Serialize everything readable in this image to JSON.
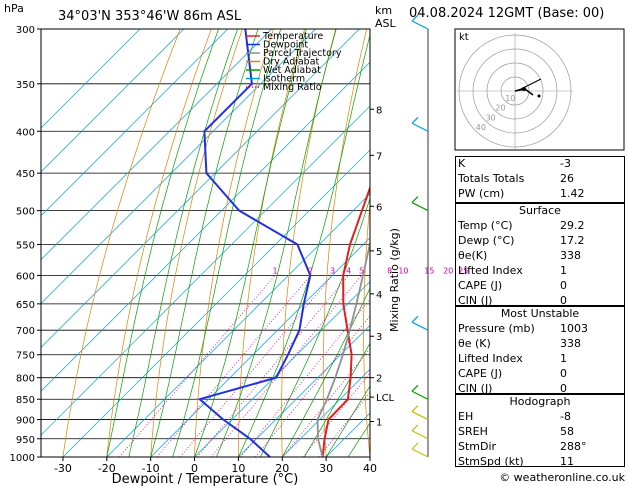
{
  "header": {
    "location": "34°03'N 353°46'W 86m ASL",
    "datetime": "04.08.2024 12GMT (Base: 00)",
    "hpa_unit": "hPa",
    "km_unit": "km",
    "asl_unit": "ASL"
  },
  "chart_data": {
    "type": "line",
    "title": "34°03'N 353°46'W 86m ASL",
    "xlabel": "Dewpoint / Temperature (°C)",
    "ylabel": "hPa",
    "right_label": "Mixing Ratio (g/kg)",
    "x_ticks": [
      -30,
      -20,
      -10,
      0,
      10,
      20,
      30,
      40
    ],
    "y_ticks": [
      300,
      350,
      400,
      450,
      500,
      550,
      600,
      650,
      700,
      750,
      800,
      850,
      900,
      950,
      1000
    ],
    "ylim": [
      1000,
      300
    ],
    "xlim": [
      -35,
      40
    ],
    "km_ticks": [
      {
        "label": "8",
        "p": 376
      },
      {
        "label": "7",
        "p": 428
      },
      {
        "label": "6",
        "p": 494
      },
      {
        "label": "5",
        "p": 560
      },
      {
        "label": "4",
        "p": 632
      },
      {
        "label": "3",
        "p": 712
      },
      {
        "label": "2",
        "p": 800
      },
      {
        "label": "LCL",
        "p": 845
      },
      {
        "label": "1",
        "p": 905
      }
    ],
    "mixing_ratio_labels": [
      "1",
      "2",
      "3",
      "4",
      "5",
      "8",
      "10",
      "15",
      "20",
      "25"
    ],
    "mixing_ratio_values": [
      1,
      2,
      3,
      4,
      5,
      8,
      10,
      15,
      20,
      25
    ],
    "legend": [
      "Temperature",
      "Dewpoint",
      "Parcel Trajectory",
      "Dry Adiabat",
      "Wet Adiabat",
      "Isotherm",
      "Mixing Ratio"
    ],
    "legend_colors": [
      "#e02020",
      "#2030e0",
      "#909090",
      "#e08000",
      "#00a000",
      "#00a0e0",
      "#e000a0"
    ],
    "series": [
      {
        "name": "Temperature",
        "p": [
          1000,
          950,
          900,
          850,
          800,
          750,
          700,
          650,
          600,
          550,
          500,
          450,
          400,
          350,
          300
        ],
        "t": [
          29.2,
          25.5,
          22.0,
          21.8,
          17.5,
          12.5,
          6.0,
          -1.0,
          -7.5,
          -13.0,
          -18.0,
          -23.5,
          -31.0,
          -40.0,
          -47.0
        ]
      },
      {
        "name": "Dewpoint",
        "p": [
          1000,
          950,
          900,
          850,
          800,
          750,
          700,
          650,
          600,
          550,
          500,
          450,
          400,
          350,
          300
        ],
        "t": [
          17.2,
          8.5,
          -2.0,
          -12.0,
          0.5,
          -2.0,
          -5.0,
          -10.0,
          -15.0,
          -25.0,
          -46.0,
          -62.0,
          -72.0,
          -72.0,
          -86.0
        ]
      },
      {
        "name": "Parcel Trajectory",
        "p": [
          1000,
          950,
          900,
          850,
          800,
          750,
          700,
          650,
          600,
          550,
          500,
          450,
          400,
          350,
          300
        ],
        "t": [
          29.2,
          24.0,
          19.5,
          17.0,
          14.0,
          10.5,
          6.5,
          2.0,
          -3.0,
          -8.5,
          -14.5,
          -21.5,
          -29.5,
          -39.0,
          -50.0
        ]
      }
    ]
  },
  "hodograph": {
    "label": "kt",
    "ring_labels": [
      "10",
      "20",
      "30",
      "40"
    ]
  },
  "indices": [
    {
      "label": "K",
      "value": "-3"
    },
    {
      "label": "Totals Totals",
      "value": "26"
    },
    {
      "label": "PW (cm)",
      "value": "1.42"
    }
  ],
  "surface": {
    "title": "Surface",
    "rows": [
      {
        "label": "Temp (°C)",
        "value": "29.2"
      },
      {
        "label": "Dewp (°C)",
        "value": "17.2"
      },
      {
        "label": "θe(K)",
        "value": "338"
      },
      {
        "label": "Lifted Index",
        "value": "1"
      },
      {
        "label": "CAPE (J)",
        "value": "0"
      },
      {
        "label": "CIN (J)",
        "value": "0"
      }
    ]
  },
  "most_unstable": {
    "title": "Most Unstable",
    "rows": [
      {
        "label": "Pressure (mb)",
        "value": "1003"
      },
      {
        "label": "θe (K)",
        "value": "338"
      },
      {
        "label": "Lifted Index",
        "value": "1"
      },
      {
        "label": "CAPE (J)",
        "value": "0"
      },
      {
        "label": "CIN (J)",
        "value": "0"
      }
    ]
  },
  "hodograph_table": {
    "title": "Hodograph",
    "rows": [
      {
        "label": "EH",
        "value": "-8"
      },
      {
        "label": "SREH",
        "value": "58"
      },
      {
        "label": "StmDir",
        "value": "288°"
      },
      {
        "label": "StmSpd (kt)",
        "value": "11"
      }
    ]
  },
  "credit": "© weatheronline.co.uk"
}
